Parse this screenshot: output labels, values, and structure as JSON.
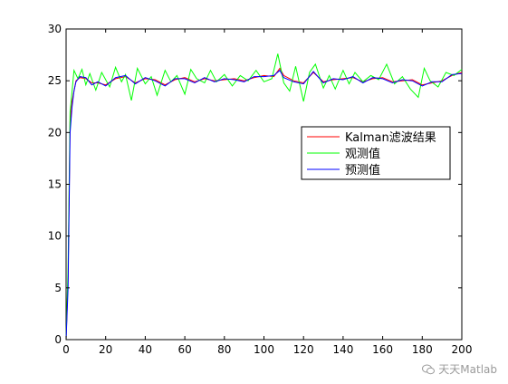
{
  "chart_data": {
    "type": "line",
    "title": "",
    "xlabel": "",
    "ylabel": "",
    "xlim": [
      0,
      200
    ],
    "ylim": [
      0,
      30
    ],
    "xticks": [
      0,
      20,
      40,
      60,
      80,
      100,
      120,
      140,
      160,
      180,
      200
    ],
    "yticks": [
      0,
      5,
      10,
      15,
      20,
      25,
      30
    ],
    "grid": false,
    "legend_position": "center-right",
    "series": [
      {
        "name": "Kalman滤波结果",
        "color": "#ff0000",
        "x": [
          0,
          1,
          2,
          3,
          4,
          5,
          7,
          10,
          13,
          16,
          20,
          25,
          30,
          35,
          40,
          45,
          50,
          55,
          60,
          65,
          70,
          75,
          80,
          85,
          90,
          95,
          100,
          105,
          108,
          110,
          115,
          120,
          125,
          130,
          135,
          140,
          145,
          150,
          155,
          160,
          165,
          170,
          175,
          180,
          185,
          190,
          195,
          200
        ],
        "y": [
          0,
          6,
          21,
          23,
          24,
          25,
          25.3,
          25.2,
          24.8,
          24.8,
          24.6,
          25.2,
          25.4,
          24.8,
          25.2,
          25.1,
          24.6,
          25.1,
          25.3,
          24.9,
          25.2,
          25.0,
          25.1,
          25.2,
          25.0,
          25.3,
          25.5,
          25.4,
          26.2,
          25.5,
          25.0,
          24.8,
          25.8,
          24.9,
          25.1,
          25.2,
          25.3,
          24.9,
          25.2,
          25.3,
          24.9,
          25.0,
          25.1,
          24.6,
          24.8,
          25.0,
          25.5,
          25.8
        ]
      },
      {
        "name": "观测值",
        "color": "#00ff00",
        "x": [
          0,
          1,
          2,
          3,
          4,
          6,
          8,
          10,
          12,
          15,
          18,
          22,
          25,
          28,
          30,
          33,
          36,
          40,
          43,
          46,
          50,
          53,
          56,
          60,
          63,
          66,
          70,
          73,
          76,
          80,
          84,
          88,
          92,
          96,
          100,
          104,
          107,
          110,
          113,
          116,
          120,
          123,
          126,
          130,
          133,
          136,
          140,
          143,
          146,
          150,
          154,
          158,
          162,
          166,
          170,
          174,
          178,
          181,
          184,
          188,
          192,
          196,
          200
        ],
        "y": [
          0,
          7,
          22,
          24,
          26,
          25.2,
          26.1,
          24.6,
          25.7,
          24.1,
          25.8,
          24.4,
          26.3,
          24.9,
          25.6,
          23.1,
          26.2,
          24.7,
          25.4,
          23.6,
          26.0,
          24.9,
          25.5,
          23.7,
          26.1,
          25.2,
          24.8,
          26.0,
          24.9,
          25.6,
          24.5,
          25.5,
          25.0,
          26.0,
          24.9,
          25.2,
          27.6,
          24.8,
          24.0,
          26.4,
          23.0,
          25.8,
          26.6,
          24.3,
          25.5,
          24.2,
          26.0,
          24.7,
          25.8,
          24.9,
          25.5,
          25.1,
          26.6,
          24.7,
          25.4,
          24.2,
          23.4,
          26.2,
          25.0,
          24.4,
          25.8,
          25.5,
          26.1
        ]
      },
      {
        "name": "预测值",
        "color": "#0000ff",
        "x": [
          0,
          1,
          2,
          3,
          4,
          5,
          7,
          10,
          13,
          16,
          20,
          25,
          30,
          35,
          40,
          45,
          50,
          55,
          60,
          65,
          70,
          75,
          80,
          85,
          90,
          95,
          100,
          105,
          108,
          110,
          115,
          120,
          125,
          130,
          135,
          140,
          145,
          150,
          155,
          160,
          165,
          170,
          175,
          180,
          185,
          190,
          195,
          200
        ],
        "y": [
          0,
          5,
          20,
          22.5,
          24,
          24.9,
          25.4,
          25.3,
          24.6,
          24.9,
          24.5,
          25.3,
          25.5,
          24.7,
          25.3,
          25.0,
          24.5,
          25.2,
          25.2,
          24.8,
          25.3,
          24.9,
          25.2,
          25.1,
          24.9,
          25.4,
          25.4,
          25.5,
          26.0,
          25.3,
          24.9,
          24.7,
          25.9,
          24.8,
          25.2,
          25.1,
          25.4,
          24.8,
          25.3,
          25.2,
          24.8,
          25.1,
          25.0,
          24.5,
          24.9,
          24.9,
          25.6,
          25.7
        ]
      }
    ]
  },
  "watermark": {
    "text": "天天Matlab",
    "icon": "wechat-icon"
  }
}
